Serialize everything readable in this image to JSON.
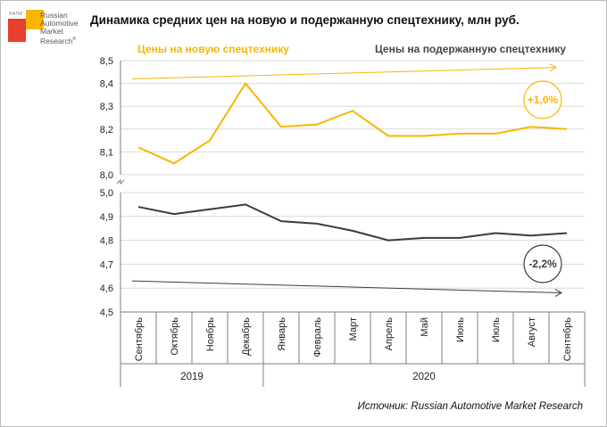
{
  "title": "Динамика средних цен на новую и подержанную спецтехнику, млн руб.",
  "source": "Источник: Russian Automotive Market Research",
  "logo": {
    "small_text": "НАПИ",
    "lines": [
      "Russian",
      "Automotive",
      "Market",
      "Research"
    ],
    "mark": "®"
  },
  "colors": {
    "new": "#f7b600",
    "used": "#3c3c3c",
    "grid": "#d9d9d9",
    "axis": "#7f7f7f"
  },
  "chart_data": {
    "type": "line",
    "title": "Динамика средних цен на новую и подержанную спецтехнику, млн руб.",
    "categories": [
      "Сентябрь",
      "Октябрь",
      "Ноябрь",
      "Декабрь",
      "Январь",
      "Февраль",
      "Март",
      "Апрель",
      "Май",
      "Июнь",
      "Июль",
      "Август",
      "Сентябрь"
    ],
    "year_groups": [
      {
        "label": "2019",
        "span": 4
      },
      {
        "label": "2020",
        "span": 9
      }
    ],
    "series": [
      {
        "name": "Цены на новую спецтехнику",
        "values": [
          8.12,
          8.05,
          8.15,
          8.4,
          8.21,
          8.22,
          8.28,
          8.17,
          8.17,
          8.18,
          8.18,
          8.21,
          8.2
        ]
      },
      {
        "name": "Цены на подержанную спецтехнику",
        "values": [
          4.94,
          4.91,
          4.93,
          4.95,
          4.88,
          4.87,
          4.84,
          4.8,
          4.81,
          4.81,
          4.83,
          4.82,
          4.83
        ]
      }
    ],
    "upper_axis": {
      "ticks": [
        "8,0",
        "8,1",
        "8,2",
        "8,3",
        "8,4",
        "8,5"
      ],
      "ylim": [
        8.0,
        8.5
      ]
    },
    "lower_axis": {
      "ticks": [
        "4,5",
        "4,6",
        "4,7",
        "4,8",
        "4,9",
        "5,0"
      ],
      "ylim": [
        4.5,
        5.0
      ]
    },
    "annotations": [
      {
        "series": 0,
        "text": "+1,0%",
        "trend": [
          8.42,
          8.47
        ]
      },
      {
        "series": 1,
        "text": "-2,2%",
        "trend": [
          4.63,
          4.58
        ]
      }
    ],
    "grid": true,
    "legend": "top"
  }
}
